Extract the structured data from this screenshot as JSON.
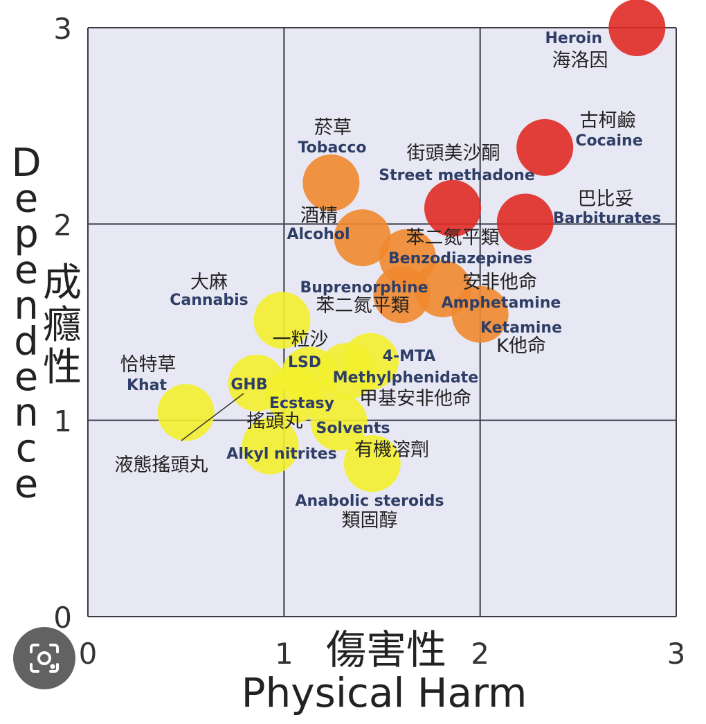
{
  "chart_data": {
    "type": "scatter",
    "xlabel_zh": "傷害性",
    "xlabel_en": "Physical Harm",
    "ylabel_en": "Dependence",
    "ylabel_zh": "成癮性",
    "xlim": [
      0,
      3
    ],
    "ylim": [
      0,
      3
    ],
    "xticks": [
      "0",
      "1",
      "2",
      "3"
    ],
    "yticks": [
      "0",
      "1",
      "2",
      "3"
    ],
    "grid": true,
    "colors": {
      "high": "#e02a25",
      "mid": "#f0882d",
      "low": "#f3f02f",
      "plot_bg": "#e8e8f4",
      "grid": "#3a3a48"
    },
    "points": [
      {
        "en": "Heroin",
        "zh": "海洛因",
        "x": 2.8,
        "y": 3.0,
        "group": "high"
      },
      {
        "en": "Cocaine",
        "zh": "古柯鹼",
        "x": 2.33,
        "y": 2.39,
        "group": "high"
      },
      {
        "en": "Street methadone",
        "zh": "街頭美沙酮",
        "x": 1.86,
        "y": 2.08,
        "group": "high"
      },
      {
        "en": "Barbiturates",
        "zh": "巴比妥",
        "x": 2.23,
        "y": 2.01,
        "group": "high"
      },
      {
        "en": "Tobacco",
        "zh": "菸草",
        "x": 1.24,
        "y": 2.21,
        "group": "mid"
      },
      {
        "en": "Alcohol",
        "zh": "酒精",
        "x": 1.4,
        "y": 1.93,
        "group": "mid"
      },
      {
        "en": "Benzodiazepines",
        "zh": "苯二氮平類",
        "x": 1.63,
        "y": 1.83,
        "group": "mid"
      },
      {
        "en": "Buprenorphine",
        "zh": "苯二氮平類",
        "x": 1.6,
        "y": 1.64,
        "group": "mid"
      },
      {
        "en": "Amphetamine",
        "zh": "安非他命",
        "x": 1.81,
        "y": 1.67,
        "group": "mid"
      },
      {
        "en": "Ketamine",
        "zh": "K他命",
        "x": 2.0,
        "y": 1.54,
        "group": "mid"
      },
      {
        "en": "Cannabis",
        "zh": "大麻",
        "x": 0.99,
        "y": 1.51,
        "group": "low"
      },
      {
        "en": "LSD",
        "zh": "一粒沙",
        "x": 1.13,
        "y": 1.23,
        "group": "low"
      },
      {
        "en": "4-MTA",
        "zh": "",
        "x": 1.44,
        "y": 1.3,
        "group": "low"
      },
      {
        "en": "Methylphenidate",
        "zh": "甲基安非他命",
        "x": 1.32,
        "y": 1.25,
        "group": "low"
      },
      {
        "en": "GHB",
        "zh": "液態搖頭丸",
        "x": 0.86,
        "y": 1.19,
        "group": "low"
      },
      {
        "en": "Ecstasy",
        "zh": "搖頭丸",
        "x": 1.05,
        "y": 1.13,
        "group": "low"
      },
      {
        "en": "Khat",
        "zh": "恰特草",
        "x": 0.5,
        "y": 1.04,
        "group": "low"
      },
      {
        "en": "Solvents",
        "zh": "",
        "x": 1.28,
        "y": 0.99,
        "group": "low"
      },
      {
        "en": "Alkyl nitrites",
        "zh": "",
        "x": 0.93,
        "y": 0.87,
        "group": "low"
      },
      {
        "en": "Anabolic steroids",
        "zh": "類固醇",
        "x": 1.45,
        "y": 0.78,
        "group": "low"
      }
    ],
    "extra_labels": [
      {
        "text": "有機溶劑"
      }
    ]
  },
  "ui": {
    "lens_button": "lens-icon"
  }
}
